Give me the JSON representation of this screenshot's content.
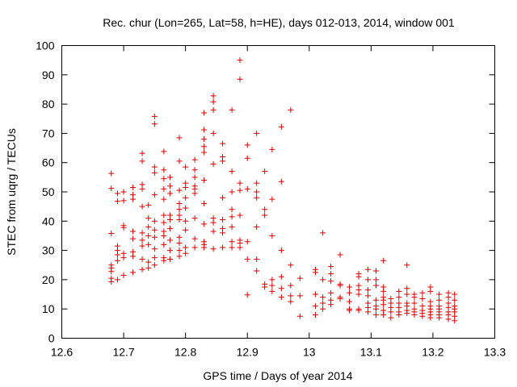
{
  "chart_data": {
    "type": "scatter",
    "title": "Rec. chur (Lon=265, Lat=58, h=HE), days 012-013, 2014, window 001",
    "xlabel": "GPS time / Days of year 2014",
    "ylabel": "STEC from uqrg / TECUs",
    "xlim": [
      12.6,
      13.3
    ],
    "ylim": [
      0,
      100
    ],
    "xticks": [
      "12.6",
      "12.7",
      "12.8",
      "12.9",
      "13",
      "13.1",
      "13.2",
      "13.3"
    ],
    "yticks": [
      "0",
      "10",
      "20",
      "30",
      "40",
      "50",
      "60",
      "70",
      "80",
      "90",
      "100"
    ],
    "xtick_values": [
      12.6,
      12.7,
      12.8,
      12.9,
      13.0,
      13.1,
      13.2,
      13.3
    ],
    "ytick_values": [
      0,
      10,
      20,
      30,
      40,
      50,
      60,
      70,
      80,
      90,
      100
    ],
    "grid": false,
    "marker": "plus",
    "color": "#e00000",
    "points": [
      [
        12.68,
        56.3
      ],
      [
        12.68,
        51.2
      ],
      [
        12.68,
        35.8
      ],
      [
        12.68,
        25.0
      ],
      [
        12.68,
        24.0
      ],
      [
        12.68,
        22.8
      ],
      [
        12.68,
        20.5
      ],
      [
        12.68,
        19.3
      ],
      [
        12.69,
        49.5
      ],
      [
        12.69,
        46.8
      ],
      [
        12.69,
        31.5
      ],
      [
        12.69,
        30.0
      ],
      [
        12.69,
        28.5
      ],
      [
        12.69,
        26.5
      ],
      [
        12.69,
        20.0
      ],
      [
        12.7,
        50.0
      ],
      [
        12.7,
        47.0
      ],
      [
        12.7,
        38.5
      ],
      [
        12.7,
        37.8
      ],
      [
        12.7,
        29.0
      ],
      [
        12.7,
        27.5
      ],
      [
        12.7,
        21.5
      ],
      [
        12.715,
        51.5
      ],
      [
        12.715,
        49.0
      ],
      [
        12.715,
        47.5
      ],
      [
        12.715,
        36.5
      ],
      [
        12.715,
        34.0
      ],
      [
        12.715,
        29.5
      ],
      [
        12.715,
        28.0
      ],
      [
        12.715,
        22.5
      ],
      [
        12.73,
        63.2
      ],
      [
        12.73,
        60.5
      ],
      [
        12.73,
        52.5
      ],
      [
        12.73,
        51.0
      ],
      [
        12.73,
        45.0
      ],
      [
        12.73,
        36.0
      ],
      [
        12.73,
        33.5
      ],
      [
        12.73,
        31.5
      ],
      [
        12.73,
        27.0
      ],
      [
        12.73,
        23.5
      ],
      [
        12.74,
        45.5
      ],
      [
        12.74,
        41.0
      ],
      [
        12.74,
        38.0
      ],
      [
        12.74,
        35.0
      ],
      [
        12.74,
        32.0
      ],
      [
        12.74,
        26.0
      ],
      [
        12.74,
        24.0
      ],
      [
        12.75,
        75.8
      ],
      [
        12.75,
        73.2
      ],
      [
        12.75,
        58.5
      ],
      [
        12.75,
        56.5
      ],
      [
        12.75,
        49.0
      ],
      [
        12.75,
        40.0
      ],
      [
        12.75,
        37.0
      ],
      [
        12.75,
        34.5
      ],
      [
        12.75,
        30.5
      ],
      [
        12.75,
        27.5
      ],
      [
        12.75,
        25.0
      ],
      [
        12.765,
        63.8
      ],
      [
        12.765,
        57.5
      ],
      [
        12.765,
        54.5
      ],
      [
        12.765,
        51.0
      ],
      [
        12.765,
        47.5
      ],
      [
        12.765,
        42.0
      ],
      [
        12.765,
        39.5
      ],
      [
        12.765,
        36.5
      ],
      [
        12.765,
        35.0
      ],
      [
        12.765,
        32.0
      ],
      [
        12.765,
        27.5
      ],
      [
        12.765,
        26.5
      ],
      [
        12.775,
        55.0
      ],
      [
        12.775,
        52.0
      ],
      [
        12.775,
        49.5
      ],
      [
        12.775,
        42.0
      ],
      [
        12.775,
        40.5
      ],
      [
        12.775,
        37.5
      ],
      [
        12.775,
        33.5
      ],
      [
        12.775,
        30.0
      ],
      [
        12.775,
        27.0
      ],
      [
        12.79,
        68.5
      ],
      [
        12.79,
        60.5
      ],
      [
        12.79,
        50.5
      ],
      [
        12.79,
        46.0
      ],
      [
        12.79,
        44.0
      ],
      [
        12.79,
        42.0
      ],
      [
        12.79,
        40.5
      ],
      [
        12.79,
        34.5
      ],
      [
        12.79,
        32.5
      ],
      [
        12.79,
        30.0
      ],
      [
        12.79,
        28.0
      ],
      [
        12.8,
        58.5
      ],
      [
        12.8,
        53.0
      ],
      [
        12.8,
        51.5
      ],
      [
        12.8,
        48.0
      ],
      [
        12.8,
        44.5
      ],
      [
        12.8,
        40.0
      ],
      [
        12.8,
        37.0
      ],
      [
        12.8,
        31.0
      ],
      [
        12.8,
        29.0
      ],
      [
        12.815,
        61.0
      ],
      [
        12.815,
        57.5
      ],
      [
        12.815,
        55.0
      ],
      [
        12.815,
        52.0
      ],
      [
        12.815,
        51.0
      ],
      [
        12.815,
        49.5
      ],
      [
        12.815,
        41.0
      ],
      [
        12.815,
        34.0
      ],
      [
        12.815,
        31.0
      ],
      [
        12.83,
        77.0
      ],
      [
        12.83,
        71.2
      ],
      [
        12.83,
        68.0
      ],
      [
        12.83,
        65.5
      ],
      [
        12.83,
        63.5
      ],
      [
        12.83,
        54.0
      ],
      [
        12.83,
        46.0
      ],
      [
        12.83,
        39.0
      ],
      [
        12.83,
        33.0
      ],
      [
        12.83,
        32.0
      ],
      [
        12.83,
        31.0
      ],
      [
        12.845,
        82.8
      ],
      [
        12.845,
        80.8
      ],
      [
        12.845,
        78.0
      ],
      [
        12.845,
        70.0
      ],
      [
        12.845,
        59.5
      ],
      [
        12.845,
        41.0
      ],
      [
        12.845,
        39.5
      ],
      [
        12.845,
        36.5
      ],
      [
        12.845,
        30.5
      ],
      [
        12.86,
        66.5
      ],
      [
        12.86,
        62.0
      ],
      [
        12.86,
        60.5
      ],
      [
        12.86,
        48.0
      ],
      [
        12.86,
        40.5
      ],
      [
        12.86,
        37.5
      ],
      [
        12.86,
        36.0
      ],
      [
        12.86,
        31.0
      ],
      [
        12.875,
        78.0
      ],
      [
        12.875,
        57.0
      ],
      [
        12.875,
        50.0
      ],
      [
        12.875,
        44.0
      ],
      [
        12.875,
        41.5
      ],
      [
        12.875,
        38.0
      ],
      [
        12.875,
        33.0
      ],
      [
        12.875,
        31.0
      ],
      [
        12.888,
        95.0
      ],
      [
        12.888,
        88.5
      ],
      [
        12.888,
        53.0
      ],
      [
        12.888,
        50.5
      ],
      [
        12.888,
        42.0
      ],
      [
        12.888,
        33.5
      ],
      [
        12.888,
        32.5
      ],
      [
        12.888,
        31.0
      ],
      [
        12.9,
        66.0
      ],
      [
        12.9,
        61.5
      ],
      [
        12.9,
        51.0
      ],
      [
        12.9,
        33.0
      ],
      [
        12.9,
        27.0
      ],
      [
        12.9,
        14.8
      ],
      [
        12.915,
        70.0
      ],
      [
        12.915,
        53.0
      ],
      [
        12.915,
        50.0
      ],
      [
        12.915,
        48.0
      ],
      [
        12.915,
        38.0
      ],
      [
        12.915,
        27.0
      ],
      [
        12.915,
        23.0
      ],
      [
        12.928,
        57.0
      ],
      [
        12.928,
        44.0
      ],
      [
        12.928,
        42.0
      ],
      [
        12.928,
        18.5
      ],
      [
        12.928,
        17.5
      ],
      [
        12.94,
        64.5
      ],
      [
        12.94,
        47.5
      ],
      [
        12.94,
        35.0
      ],
      [
        12.94,
        20.0
      ],
      [
        12.94,
        18.0
      ],
      [
        12.94,
        16.0
      ],
      [
        12.955,
        72.2
      ],
      [
        12.955,
        53.5
      ],
      [
        12.955,
        30.0
      ],
      [
        12.955,
        21.0
      ],
      [
        12.955,
        17.0
      ],
      [
        12.955,
        14.0
      ],
      [
        12.97,
        78.0
      ],
      [
        12.97,
        25.0
      ],
      [
        12.97,
        18.0
      ],
      [
        12.97,
        14.5
      ],
      [
        12.97,
        12.5
      ],
      [
        12.985,
        20.5
      ],
      [
        12.985,
        14.5
      ],
      [
        12.985,
        7.5
      ],
      [
        13.01,
        23.5
      ],
      [
        13.01,
        22.5
      ],
      [
        13.01,
        15.0
      ],
      [
        13.01,
        11.0
      ],
      [
        13.01,
        8.0
      ],
      [
        13.022,
        36.0
      ],
      [
        13.022,
        20.0
      ],
      [
        13.022,
        14.0
      ],
      [
        13.022,
        12.0
      ],
      [
        13.022,
        10.0
      ],
      [
        13.035,
        24.5
      ],
      [
        13.035,
        22.0
      ],
      [
        13.035,
        19.5
      ],
      [
        13.035,
        15.5
      ],
      [
        13.035,
        13.0
      ],
      [
        13.035,
        11.5
      ],
      [
        13.05,
        28.5
      ],
      [
        13.05,
        18.5
      ],
      [
        13.05,
        18.0
      ],
      [
        13.05,
        14.0
      ],
      [
        13.05,
        13.5
      ],
      [
        13.065,
        17.5
      ],
      [
        13.065,
        15.5
      ],
      [
        13.065,
        12.5
      ],
      [
        13.065,
        10.0
      ],
      [
        13.065,
        9.5
      ],
      [
        13.08,
        22.0
      ],
      [
        13.08,
        21.0
      ],
      [
        13.08,
        18.0
      ],
      [
        13.08,
        16.5
      ],
      [
        13.08,
        15.0
      ],
      [
        13.08,
        10.0
      ],
      [
        13.08,
        9.5
      ],
      [
        13.095,
        23.5
      ],
      [
        13.095,
        20.0
      ],
      [
        13.095,
        16.5
      ],
      [
        13.095,
        14.5
      ],
      [
        13.095,
        12.0
      ],
      [
        13.095,
        10.5
      ],
      [
        13.095,
        9.0
      ],
      [
        13.108,
        23.0
      ],
      [
        13.108,
        20.0
      ],
      [
        13.108,
        18.0
      ],
      [
        13.108,
        13.0
      ],
      [
        13.108,
        11.0
      ],
      [
        13.108,
        10.0
      ],
      [
        13.108,
        8.0
      ],
      [
        13.12,
        26.5
      ],
      [
        13.12,
        17.5
      ],
      [
        13.12,
        16.0
      ],
      [
        13.12,
        14.0
      ],
      [
        13.12,
        13.0
      ],
      [
        13.12,
        11.5
      ],
      [
        13.12,
        9.5
      ],
      [
        13.12,
        8.0
      ],
      [
        13.132,
        13.5
      ],
      [
        13.132,
        12.0
      ],
      [
        13.132,
        10.5
      ],
      [
        13.132,
        9.0
      ],
      [
        13.132,
        7.0
      ],
      [
        13.145,
        16.0
      ],
      [
        13.145,
        14.0
      ],
      [
        13.145,
        12.0
      ],
      [
        13.145,
        10.5
      ],
      [
        13.145,
        9.0
      ],
      [
        13.145,
        8.0
      ],
      [
        13.158,
        25.0
      ],
      [
        13.158,
        17.0
      ],
      [
        13.158,
        15.0
      ],
      [
        13.158,
        12.0
      ],
      [
        13.158,
        11.0
      ],
      [
        13.158,
        9.5
      ],
      [
        13.158,
        8.5
      ],
      [
        13.17,
        15.0
      ],
      [
        13.17,
        14.0
      ],
      [
        13.17,
        12.0
      ],
      [
        13.17,
        10.0
      ],
      [
        13.17,
        9.0
      ],
      [
        13.17,
        8.0
      ],
      [
        13.183,
        15.5
      ],
      [
        13.183,
        13.5
      ],
      [
        13.183,
        11.0
      ],
      [
        13.183,
        9.5
      ],
      [
        13.183,
        8.5
      ],
      [
        13.183,
        7.5
      ],
      [
        13.196,
        17.5
      ],
      [
        13.196,
        16.0
      ],
      [
        13.196,
        12.5
      ],
      [
        13.196,
        11.0
      ],
      [
        13.196,
        10.0
      ],
      [
        13.196,
        9.0
      ],
      [
        13.196,
        8.0
      ],
      [
        13.196,
        7.0
      ],
      [
        13.21,
        15.0
      ],
      [
        13.21,
        13.0
      ],
      [
        13.21,
        11.0
      ],
      [
        13.21,
        10.0
      ],
      [
        13.21,
        9.0
      ],
      [
        13.21,
        8.0
      ],
      [
        13.21,
        7.0
      ],
      [
        13.225,
        15.5
      ],
      [
        13.225,
        14.0
      ],
      [
        13.225,
        12.0
      ],
      [
        13.225,
        10.5
      ],
      [
        13.225,
        9.0
      ],
      [
        13.225,
        8.0
      ],
      [
        13.225,
        6.5
      ],
      [
        13.235,
        15.0
      ],
      [
        13.235,
        13.0
      ],
      [
        13.235,
        11.0
      ],
      [
        13.235,
        10.0
      ],
      [
        13.235,
        9.0
      ],
      [
        13.235,
        7.5
      ],
      [
        13.235,
        6.0
      ]
    ]
  }
}
